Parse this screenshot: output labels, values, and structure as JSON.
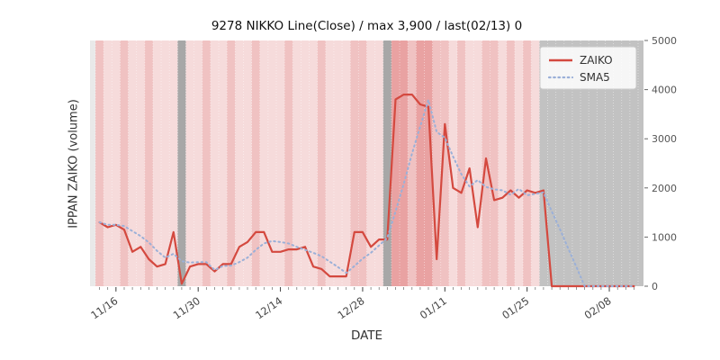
{
  "chart_data": {
    "type": "line",
    "title": "9278 NIKKO Line(Close) / max 3,900 / last(02/13) 0",
    "xlabel": "DATE",
    "ylabel": "IPPAN ZAIKO (volume)",
    "ylim": [
      0,
      5000
    ],
    "yticks": [
      0,
      1000,
      2000,
      3000,
      4000,
      5000
    ],
    "x_unit": "trading-day-index",
    "n_points": 66,
    "xtick_indices": [
      2,
      12,
      22,
      32,
      42,
      52,
      62
    ],
    "xtick_labels": [
      "11/16",
      "11/30",
      "12/14",
      "12/28",
      "01/11",
      "01/25",
      "02/08"
    ],
    "legend": {
      "position": "upper right",
      "entries": [
        "ZAIKO",
        "SMA5"
      ]
    },
    "series": [
      {
        "name": "ZAIKO",
        "style": "solid",
        "color": "#d4493f",
        "values": [
          1300,
          1200,
          1250,
          1150,
          700,
          800,
          550,
          400,
          450,
          1100,
          50,
          400,
          450,
          450,
          300,
          450,
          450,
          800,
          900,
          1100,
          1100,
          700,
          700,
          750,
          750,
          800,
          400,
          350,
          200,
          200,
          200,
          1100,
          1100,
          800,
          950,
          950,
          3800,
          3900,
          3900,
          3700,
          3650,
          550,
          3300,
          2000,
          1900,
          2400,
          1200,
          2600,
          1750,
          1800,
          1950,
          1800,
          1950,
          1900,
          1950,
          0,
          0,
          0,
          0,
          0,
          0,
          0,
          0,
          0,
          0,
          0
        ]
      },
      {
        "name": "SMA5",
        "style": "dotted",
        "color": "#9bb0d8",
        "values": [
          1300,
          1250,
          1250,
          1225,
          1120,
          1020,
          890,
          720,
          580,
          660,
          510,
          480,
          490,
          490,
          330,
          410,
          420,
          490,
          580,
          740,
          870,
          920,
          900,
          870,
          800,
          740,
          680,
          610,
          500,
          390,
          270,
          410,
          560,
          680,
          830,
          980,
          1520,
          2080,
          2700,
          3250,
          3790,
          3140,
          3020,
          2640,
          2280,
          2030,
          2160,
          2020,
          1970,
          1950,
          1860,
          1980,
          1850,
          1880,
          1910,
          1520,
          1160,
          770,
          390,
          0,
          0,
          0,
          0,
          0,
          0,
          0
        ]
      }
    ],
    "bands": [
      "2",
      "1",
      "1",
      "2",
      "1",
      "1",
      "2",
      "1",
      "1",
      "1",
      "dark",
      "1",
      "1",
      "2",
      "1",
      "1",
      "2",
      "1",
      "1",
      "2",
      "1",
      "1",
      "1",
      "2",
      "1",
      "1",
      "1",
      "2",
      "1",
      "1",
      "1",
      "2",
      "2",
      "1",
      "1",
      "dark",
      "3",
      "3",
      "2",
      "3",
      "3",
      "2",
      "2",
      "1",
      "2",
      "1",
      "1",
      "2",
      "2",
      "1",
      "2",
      "1",
      "2",
      "1",
      "gray",
      "gray",
      "gray",
      "gray",
      "gray",
      "gray",
      "gray",
      "gray",
      "gray",
      "gray",
      "gray",
      "gray"
    ],
    "band_colors": {
      "base": "#e9e9e9",
      "1": "#f6dbdb",
      "2": "#f0c2c2",
      "3": "#e9a2a2",
      "dark": "#a7a7a7",
      "gray": "#c2c2c2"
    },
    "axis_colors": {
      "tick_label": "#555555",
      "tick_mark": "#666666",
      "grid": "#ffffff"
    }
  }
}
